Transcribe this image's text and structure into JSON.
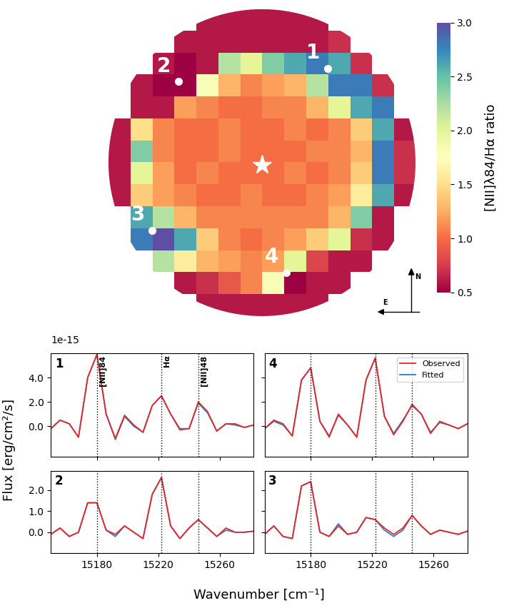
{
  "figure": {
    "x_label": "Wavenumber [cm⁻¹]",
    "y_label": "Flux [erg/cm²/s]",
    "offset_text": "1e-15"
  },
  "chart_data": [
    {
      "type": "heatmap",
      "color": "Spectral",
      "tick_labels": false,
      "cells": [
        [
          null,
          null,
          null,
          null,
          0.6,
          0.6,
          0.6,
          0.6,
          0.6,
          0.6,
          null,
          null,
          null,
          null
        ],
        [
          null,
          null,
          null,
          0.6,
          0.6,
          0.6,
          0.6,
          0.6,
          0.6,
          0.6,
          0.7,
          null,
          null,
          null
        ],
        [
          null,
          null,
          0.6,
          0.5,
          0.6,
          2.2,
          2.0,
          2.4,
          2.6,
          2.8,
          2.6,
          0.7,
          null,
          null
        ],
        [
          null,
          0.6,
          0.5,
          0.5,
          1.8,
          1.3,
          1.1,
          1.2,
          1.3,
          2.2,
          2.8,
          2.8,
          0.7,
          null
        ],
        [
          null,
          0.6,
          0.6,
          1.2,
          1.1,
          1.0,
          1.0,
          1.1,
          1.1,
          1.3,
          2.0,
          2.6,
          2.8,
          null
        ],
        [
          0.6,
          1.5,
          1.1,
          1.0,
          1.0,
          1.1,
          1.0,
          1.0,
          1.1,
          1.0,
          1.1,
          1.4,
          2.6,
          0.6
        ],
        [
          0.6,
          2.4,
          1.1,
          1.0,
          1.0,
          1.1,
          1.0,
          1.0,
          1.0,
          1.1,
          1.1,
          1.3,
          2.8,
          0.7
        ],
        [
          0.6,
          2.0,
          1.2,
          1.0,
          1.1,
          1.0,
          1.0,
          1.0,
          1.1,
          1.0,
          1.1,
          1.4,
          2.8,
          0.7
        ],
        [
          0.6,
          1.4,
          1.2,
          1.1,
          1.0,
          1.0,
          1.1,
          1.0,
          1.0,
          1.1,
          1.2,
          1.6,
          2.6,
          0.6
        ],
        [
          null,
          2.6,
          2.2,
          1.3,
          1.1,
          1.1,
          1.1,
          1.1,
          1.1,
          1.1,
          1.3,
          2.4,
          0.6,
          null
        ],
        [
          null,
          2.8,
          3.0,
          2.6,
          1.4,
          1.1,
          1.0,
          1.1,
          1.2,
          1.4,
          2.0,
          0.7,
          0.6,
          null
        ],
        [
          null,
          null,
          2.2,
          1.6,
          1.3,
          1.2,
          1.1,
          1.2,
          2.0,
          0.8,
          0.6,
          0.6,
          null,
          null
        ],
        [
          null,
          null,
          null,
          0.6,
          0.7,
          0.9,
          1.1,
          1.8,
          0.5,
          0.6,
          0.6,
          null,
          null,
          null
        ],
        [
          null,
          null,
          null,
          null,
          0.6,
          0.6,
          0.6,
          0.6,
          0.6,
          0.6,
          null,
          null,
          null,
          null
        ]
      ],
      "colorbar": {
        "label": "[NII]λ84/Hα ratio",
        "range": [
          0.5,
          3.0
        ],
        "ticks": [
          0.5,
          {
            "value": 1,
            "label": "1.0"
          },
          1.5,
          {
            "value": 2,
            "label": "2.0"
          },
          2.5,
          {
            "value": 3,
            "label": "3.0"
          }
        ]
      },
      "points": [
        {
          "label": "1",
          "x": 10.0,
          "y": 2.7
        },
        {
          "label": "2",
          "x": 3.2,
          "y": 3.3
        },
        {
          "label": "3",
          "x": 2.0,
          "y": 10.1
        },
        {
          "label": "4",
          "x": 8.1,
          "y": 12.0
        }
      ],
      "center": {
        "x": 7.0,
        "y": 7.1,
        "marker": "*"
      },
      "compass": {
        "north": "N",
        "east": "E"
      }
    },
    {
      "type": "line",
      "title": "1",
      "tick_labels": "y",
      "x": [
        15150,
        15156,
        15162,
        15168,
        15174,
        15180,
        15186,
        15192,
        15198,
        15204,
        15210,
        15216,
        15222,
        15228,
        15234,
        15240,
        15246,
        15252,
        15258,
        15264,
        15270,
        15276,
        15282
      ],
      "series": [
        {
          "name": "Observed",
          "color": "#e8282b",
          "values": [
            -0.2,
            0.5,
            0.2,
            -0.9,
            4.0,
            5.9,
            1.0,
            -1.0,
            0.9,
            0.1,
            -0.5,
            1.7,
            2.5,
            1.0,
            -0.3,
            -0.2,
            2.0,
            1.2,
            -0.4,
            0.2,
            0.2,
            -0.1,
            0.1
          ]
        },
        {
          "name": "Fitted",
          "color": "#2a7fc1",
          "values": [
            -0.2,
            0.5,
            0.2,
            -0.9,
            4.0,
            5.9,
            1.0,
            -1.1,
            0.8,
            0.0,
            -0.5,
            1.7,
            2.5,
            1.0,
            -0.2,
            -0.2,
            1.9,
            1.1,
            -0.4,
            0.2,
            0.1,
            -0.1,
            0.1
          ]
        }
      ],
      "xlim": [
        15150,
        15282
      ],
      "xticks": [
        15180,
        15220,
        15260
      ],
      "ylim": [
        -2.5,
        6.0
      ],
      "yticks": [
        {
          "value": 0,
          "label": "0.0"
        },
        {
          "value": 2,
          "label": "2.0"
        },
        {
          "value": 4,
          "label": "4.0"
        }
      ],
      "lines": [
        {
          "x": 15180,
          "label": "[NII]84"
        },
        {
          "x": 15222,
          "label": "Hα"
        },
        {
          "x": 15246,
          "label": "[NII]48"
        }
      ]
    },
    {
      "type": "line",
      "title": "4",
      "tick_labels": false,
      "legend": "upper right",
      "x": [
        15150,
        15156,
        15162,
        15168,
        15174,
        15180,
        15186,
        15192,
        15198,
        15204,
        15210,
        15216,
        15222,
        15228,
        15234,
        15240,
        15246,
        15252,
        15258,
        15264,
        15270,
        15276,
        15282
      ],
      "series": [
        {
          "name": "Observed",
          "color": "#e8282b",
          "values": [
            -0.2,
            0.5,
            0.2,
            -0.8,
            3.8,
            4.8,
            0.4,
            -0.9,
            1.0,
            0.1,
            -0.9,
            3.8,
            5.6,
            0.8,
            -0.7,
            0.4,
            1.8,
            1.0,
            -0.6,
            0.4,
            0.1,
            -0.2,
            0.2
          ]
        },
        {
          "name": "Fitted",
          "color": "#2a7fc1",
          "values": [
            -0.2,
            0.4,
            0.1,
            -0.8,
            3.8,
            4.8,
            0.4,
            -0.8,
            0.9,
            0.1,
            -0.9,
            3.8,
            5.6,
            0.8,
            -0.6,
            0.5,
            1.7,
            1.0,
            -0.5,
            0.3,
            0.1,
            -0.2,
            0.2
          ]
        }
      ],
      "xlim": [
        15150,
        15282
      ],
      "xticks": [
        15180,
        15220,
        15260
      ],
      "ylim": [
        -2.5,
        6.0
      ],
      "yticks": [
        {
          "value": 0,
          "label": "0.0"
        },
        {
          "value": 2,
          "label": "2.0"
        },
        {
          "value": 4,
          "label": "4.0"
        }
      ],
      "lines": [
        {
          "x": 15180
        },
        {
          "x": 15222
        },
        {
          "x": 15246
        }
      ]
    },
    {
      "type": "line",
      "title": "2",
      "x": [
        15150,
        15156,
        15162,
        15168,
        15174,
        15180,
        15186,
        15192,
        15198,
        15204,
        15210,
        15216,
        15222,
        15228,
        15234,
        15240,
        15246,
        15252,
        15258,
        15264,
        15270,
        15276,
        15282
      ],
      "series": [
        {
          "name": "Observed",
          "color": "#e8282b",
          "values": [
            -0.1,
            0.2,
            -0.2,
            0.0,
            1.4,
            1.4,
            0.1,
            -0.1,
            0.3,
            0.0,
            -0.3,
            1.8,
            2.6,
            0.3,
            -0.3,
            0.2,
            0.6,
            0.2,
            -0.2,
            0.2,
            0.0,
            0.0,
            0.05
          ]
        },
        {
          "name": "Fitted",
          "color": "#2a7fc1",
          "values": [
            -0.1,
            0.2,
            -0.2,
            0.0,
            1.4,
            1.4,
            0.1,
            -0.2,
            0.3,
            0.0,
            -0.3,
            1.8,
            2.6,
            0.3,
            -0.3,
            0.2,
            0.6,
            0.2,
            -0.2,
            0.1,
            0.0,
            0.0,
            0.05
          ]
        }
      ],
      "xlim": [
        15150,
        15282
      ],
      "xticks": [
        15180,
        15220,
        15260
      ],
      "ylim": [
        -1.0,
        2.9
      ],
      "yticks": [
        {
          "value": 0,
          "label": "0.0"
        },
        {
          "value": 1,
          "label": "1.0"
        },
        {
          "value": 2,
          "label": "2.0"
        }
      ],
      "lines": [
        {
          "x": 15180
        },
        {
          "x": 15222
        },
        {
          "x": 15246
        }
      ]
    },
    {
      "type": "line",
      "title": "3",
      "tick_labels": "x",
      "x": [
        15150,
        15156,
        15162,
        15168,
        15174,
        15180,
        15186,
        15192,
        15198,
        15204,
        15210,
        15216,
        15222,
        15228,
        15234,
        15240,
        15246,
        15252,
        15258,
        15264,
        15270,
        15276,
        15282
      ],
      "series": [
        {
          "name": "Observed",
          "color": "#e8282b",
          "values": [
            -0.1,
            0.3,
            -0.2,
            -0.3,
            2.2,
            2.4,
            0.0,
            -0.2,
            0.3,
            -0.1,
            0.0,
            0.7,
            0.6,
            0.2,
            -0.1,
            0.2,
            0.8,
            0.3,
            -0.1,
            0.1,
            0.0,
            -0.1,
            0.05
          ]
        },
        {
          "name": "Fitted",
          "color": "#2a7fc1",
          "values": [
            -0.1,
            0.3,
            -0.2,
            -0.3,
            2.2,
            2.4,
            0.0,
            -0.2,
            0.4,
            -0.1,
            0.0,
            0.7,
            0.6,
            0.1,
            -0.2,
            0.1,
            0.8,
            0.3,
            -0.1,
            0.1,
            0.0,
            -0.1,
            0.05
          ]
        }
      ],
      "xlim": [
        15150,
        15282
      ],
      "xticks": [
        15180,
        15220,
        15260
      ],
      "ylim": [
        -1.0,
        2.9
      ],
      "yticks": [
        {
          "value": 0,
          "label": "0.0"
        },
        {
          "value": 1,
          "label": "1.0"
        },
        {
          "value": 2,
          "label": "2.0"
        }
      ],
      "lines": [
        {
          "x": 15180
        },
        {
          "x": 15222
        },
        {
          "x": 15246
        }
      ]
    }
  ]
}
